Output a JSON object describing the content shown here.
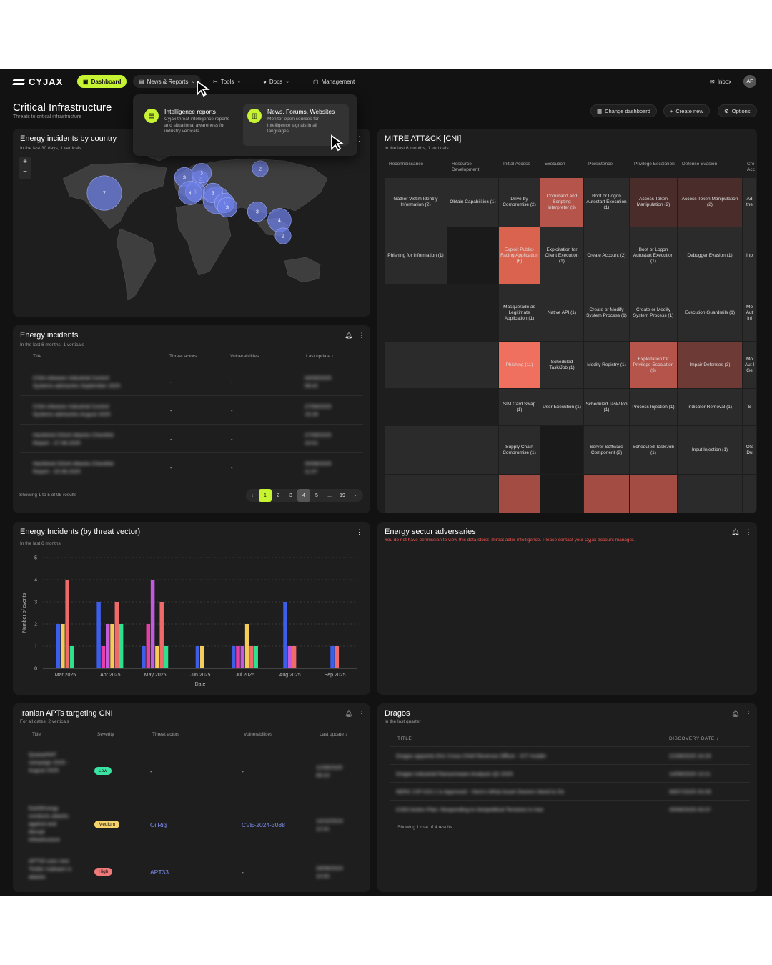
{
  "nav": {
    "logo": "CYJAX",
    "dashboard": "Dashboard",
    "news": "News & Reports",
    "tools": "Tools",
    "docs": "Docs",
    "management": "Management",
    "inbox": "Inbox",
    "avatar": "AF"
  },
  "dropdown": {
    "intel_title": "Intelligence reports",
    "intel_desc": "Cyjax threat intelligence reports and situational awareness for industry verticals",
    "news_title": "News, Forums, Websites",
    "news_desc": "Monitor open sources for intelligence signals in all languages"
  },
  "page": {
    "title": "Critical Infrastructure",
    "subtitle": "Threats to critical infrastructure",
    "change_dashboard": "Change dashboard",
    "create_new": "Create new",
    "options": "Options"
  },
  "map": {
    "title": "Energy incidents by country",
    "subtitle": "In the last 30 days, 1 verticals",
    "zoom_in": "+",
    "zoom_out": "−",
    "bubbles": [
      {
        "label": "7",
        "v": 7
      },
      {
        "label": "2",
        "v": 2
      },
      {
        "label": "3",
        "v": 3
      },
      {
        "label": "2",
        "v": 2
      },
      {
        "label": "3",
        "v": 3
      },
      {
        "label": "4",
        "v": 4
      },
      {
        "label": "3",
        "v": 3
      },
      {
        "label": "5",
        "v": 5
      },
      {
        "label": "3",
        "v": 3
      },
      {
        "label": "3",
        "v": 3
      },
      {
        "label": "3",
        "v": 3
      },
      {
        "label": "4",
        "v": 4
      },
      {
        "label": "2",
        "v": 2
      },
      {
        "label": "3",
        "v": 3
      }
    ]
  },
  "incidents": {
    "title": "Energy incidents",
    "subtitle": "In the last 6 months, 1 verticals",
    "columns": [
      "Title",
      "Threat actors",
      "Vulnerabilities",
      "Last update"
    ],
    "rows": [
      {
        "title1": "CISA releases Industrial Control",
        "title2": "Systems advisories September 2025",
        "actors": "-",
        "vulns": "-",
        "date1": "04/09/2025",
        "date2": "08:42"
      },
      {
        "title1": "CISA releases Industrial Control",
        "title2": "Systems advisories August 2025",
        "actors": "-",
        "vulns": "-",
        "date1": "27/08/2025",
        "date2": "15:28"
      },
      {
        "title1": "Hacktivist DDoS Attacks Checklist",
        "title2": "Report - 27.08.2025",
        "actors": "-",
        "vulns": "-",
        "date1": "27/08/2025",
        "date2": "10:01"
      },
      {
        "title1": "Hacktivist DDoS Attacks Checklist",
        "title2": "Report - 20.08.2025",
        "actors": "-",
        "vulns": "-",
        "date1": "20/08/2025",
        "date2": "11:07"
      }
    ],
    "showing": "Showing 1 to 5 of 95 results",
    "pages": [
      "‹",
      "1",
      "2",
      "3",
      "4",
      "5",
      "...",
      "19",
      "›"
    ]
  },
  "mitre": {
    "title": "MITRE ATT&CK [CNI]",
    "subtitle": "In the last 6 months, 1 verticals",
    "tactics": [
      "Reconnaissance",
      "Resource Development",
      "Initial Access",
      "Execution",
      "Persistence",
      "Privilege Escalation",
      "Defense Evasion",
      "Cre Acc"
    ],
    "cells": [
      "Gather Victim Identity Information (2)",
      "Obtain Capabilities (1)",
      "Drive-by Compromise (2)",
      "Command and Scripting Interpreter (3)",
      "Boot or Logon Autostart Execution (1)",
      "Access Token Manipulation (2)",
      "Access Token Manipulation (2)",
      "Ad the",
      "Phishing for Information (1)",
      "Exploit Public-Facing Application (6)",
      "Exploitation for Client Execution (1)",
      "Create Account (2)",
      "Boot or Logon Autostart Execution (1)",
      "Debugger Evasion (1)",
      "Inp",
      "Masquerade as Legitimate Application (1)",
      "Native API (1)",
      "Create or Modify System Process (1)",
      "Create or Modify System Process (1)",
      "Execution Guardrails (1)",
      "Mo Aut Ini",
      "Phishing (11)",
      "Scheduled Task/Job (1)",
      "Modify Registry (1)",
      "Exploitation for Privilege Escalation (3)",
      "Impair Defenses (3)",
      "Mo Aut I Ge",
      "SIM Card Swap (1)",
      "User Execution (1)",
      "Scheduled Task/Job (1)",
      "Process Injection (1)",
      "Indicator Removal (1)",
      "S",
      "Supply Chain Compromise (1)",
      "Server Software Component (2)",
      "Scheduled Task/Job (1)",
      "Input Injection (1)",
      "OS Du"
    ]
  },
  "vector": {
    "title": "Energy Incidents (by threat vector)",
    "subtitle": "In the last 6 months",
    "ylabel": "Number of events",
    "xlabel": "Date"
  },
  "chart_data": {
    "type": "bar",
    "categories": [
      "Mar 2025",
      "Apr 2025",
      "May 2025",
      "Jun 2025",
      "Jul 2025",
      "Aug 2025",
      "Sep 2025"
    ],
    "ylim": [
      0,
      5
    ],
    "yticks": [
      0,
      1,
      2,
      3,
      4,
      5
    ],
    "xlabel": "Date",
    "ylabel": "Number of events",
    "colors": [
      "#3d5ee8",
      "#e83ea8",
      "#f06a6a",
      "#f5cc5a",
      "#2de28f",
      "#c35ae0"
    ],
    "groups": [
      [
        {
          "c": 0,
          "v": 2
        },
        {
          "c": 3,
          "v": 2
        },
        {
          "c": 2,
          "v": 4
        },
        {
          "c": 4,
          "v": 1
        }
      ],
      [
        {
          "c": 0,
          "v": 3
        },
        {
          "c": 1,
          "v": 1
        },
        {
          "c": 5,
          "v": 2
        },
        {
          "c": 3,
          "v": 2
        },
        {
          "c": 2,
          "v": 3
        },
        {
          "c": 4,
          "v": 2
        }
      ],
      [
        {
          "c": 0,
          "v": 1
        },
        {
          "c": 1,
          "v": 2
        },
        {
          "c": 5,
          "v": 4
        },
        {
          "c": 3,
          "v": 1
        },
        {
          "c": 2,
          "v": 3
        },
        {
          "c": 4,
          "v": 1
        }
      ],
      [
        {
          "c": 0,
          "v": 1
        },
        {
          "c": 3,
          "v": 1
        }
      ],
      [
        {
          "c": 0,
          "v": 1
        },
        {
          "c": 1,
          "v": 1
        },
        {
          "c": 5,
          "v": 1
        },
        {
          "c": 3,
          "v": 2
        },
        {
          "c": 2,
          "v": 1
        },
        {
          "c": 4,
          "v": 1
        }
      ],
      [
        {
          "c": 0,
          "v": 3
        },
        {
          "c": 5,
          "v": 1
        },
        {
          "c": 2,
          "v": 1
        }
      ],
      [
        {
          "c": 0,
          "v": 1
        },
        {
          "c": 2,
          "v": 1
        }
      ]
    ]
  },
  "adversaries": {
    "title": "Energy sector adversaries",
    "error": "You do not have permission to view this data store: Threat actor intelligence. Please contact your Cyjax account manager."
  },
  "iranian": {
    "title": "Iranian APTs targeting CNI",
    "subtitle": "For all dates, 2 verticals",
    "columns": [
      "Title",
      "Severity",
      "Threat actors",
      "Vulnerabilities",
      "Last update"
    ],
    "rows": [
      {
        "title": "QuasarRAT campaign 2025 - August 2025",
        "severity": "Low",
        "sevColor": "#3be3a3",
        "actors": "-",
        "vulns": "-",
        "date1": "11/08/2025",
        "date2": "09:23"
      },
      {
        "title": "EarthEnergy conducts attacks against and disrupt infrastructure",
        "severity": "Medium",
        "sevColor": "#f5d36a",
        "actors": "OilRig",
        "vulns": "CVE-2024-3088",
        "date1": "14/10/2024",
        "date2": "12:31"
      },
      {
        "title": "APT33 uses new Tickler malware in attacks",
        "severity": "High",
        "sevColor": "#f07a7a",
        "actors": "APT33",
        "vulns": "-",
        "date1": "29/08/2024",
        "date2": "10:55"
      }
    ]
  },
  "dragos": {
    "title": "Dragos",
    "subtitle": "In the last quarter",
    "columns": [
      "TITLE",
      "DISCOVERY DATE ↓"
    ],
    "rows": [
      {
        "title": "Dragos appoints Eric Cross Chief Revenue Officer - ICT Insider",
        "date": "21/08/2025 16:29"
      },
      {
        "title": "Dragos Industrial Ransomware Analysis Q2 2025",
        "date": "14/08/2025 13:11"
      },
      {
        "title": "NERC CIP-015-1 Is Approved - Here's What Asset Owners Need to Do",
        "date": "08/07/2025 03:39"
      },
      {
        "title": "CISO Action Plan: Responding to Geopolitical Tensions in Iran",
        "date": "25/06/2025 03:37"
      }
    ],
    "showing": "Showing 1 to 4 of 4 results"
  }
}
